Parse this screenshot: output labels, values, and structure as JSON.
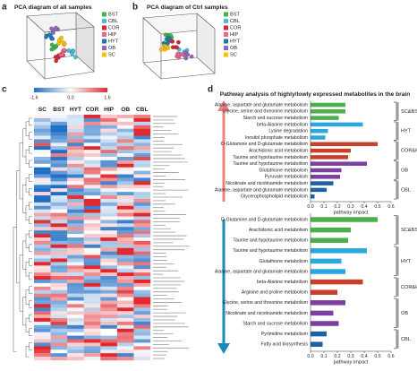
{
  "panel_a": {
    "label": "a",
    "title": "PCA diagram of all samples",
    "legend": [
      {
        "name": "BST",
        "color": "#3cb44b"
      },
      {
        "name": "CBL",
        "color": "#40c0e0"
      },
      {
        "name": "COR",
        "color": "#d62728"
      },
      {
        "name": "HIP",
        "color": "#f06292"
      },
      {
        "name": "HYT",
        "color": "#1f77b4"
      },
      {
        "name": "OB",
        "color": "#9467bd"
      },
      {
        "name": "SC",
        "color": "#ffbf00"
      }
    ]
  },
  "panel_b": {
    "label": "b",
    "title": "PCA diagram of Ctrl samples",
    "legend": [
      {
        "name": "BST",
        "color": "#3cb44b"
      },
      {
        "name": "CBL",
        "color": "#40c0e0"
      },
      {
        "name": "COR",
        "color": "#d62728"
      },
      {
        "name": "HIP",
        "color": "#f06292"
      },
      {
        "name": "HYT",
        "color": "#1f77b4"
      },
      {
        "name": "OB",
        "color": "#9467bd"
      },
      {
        "name": "SC",
        "color": "#ffbf00"
      }
    ]
  },
  "panel_c": {
    "label": "c",
    "colorbar_ticks": [
      -1.6,
      {
        "value": 0,
        "label": "0.0"
      },
      1.6
    ],
    "columns": [
      "SC",
      "BST",
      "HYT",
      "COR",
      "HIP",
      "OB",
      "CBL"
    ]
  },
  "panel_d": {
    "label": "d",
    "title": "Pathway analysis of highly/lowly expressed metabolites in the brain"
  },
  "chart_data": [
    {
      "type": "bar",
      "xlabel": "pathway impact",
      "xlim": [
        0,
        0.6
      ],
      "xticks": [
        {
          "value": 0,
          "label": "0.0"
        },
        0.1,
        0.2,
        0.3,
        0.4,
        0.5,
        0.6
      ],
      "groups": [
        {
          "name": "SC&BST",
          "color": "#4cae4c",
          "categories": [
            "Alanine, aspartate and glutamate metabolism",
            "Glycine, serine and threonine metabolism",
            "Starch and sucrose metabolism"
          ],
          "values": [
            0.26,
            0.26,
            0.21
          ]
        },
        {
          "name": "HYT",
          "color": "#29a8e0",
          "categories": [
            "beta-Alanine metabolism",
            "Lysine degradation",
            "Inositol phosphate metabolism"
          ],
          "values": [
            0.39,
            0.13,
            0.11
          ]
        },
        {
          "name": "COR&HIP",
          "color": "#c8402c",
          "categories": [
            "D-Glutamine and D-glutamate metabolism",
            "Arachidonic acid metabolism",
            "Taurine and hypotaurine metabolism"
          ],
          "values": [
            0.5,
            0.3,
            0.28
          ]
        },
        {
          "name": "OB",
          "color": "#7b3fa0",
          "categories": [
            "Taurine and hypotaurine metabolism",
            "Glutathione metabolism",
            "Pyruvate metabolism"
          ],
          "values": [
            0.42,
            0.23,
            0.22
          ]
        },
        {
          "name": "CBL",
          "color": "#1f5fa6",
          "categories": [
            "Nicotinate and nicotinamide metabolism",
            "Alanine, aspartate and glutamate metabolism",
            "Glycerophospholipid metabolism"
          ],
          "values": [
            0.17,
            0.12,
            0.03
          ]
        }
      ]
    },
    {
      "type": "bar",
      "xlabel": "pathway impact",
      "xlim": [
        0,
        0.6
      ],
      "xticks": [
        {
          "value": 0,
          "label": "0.0"
        },
        0.1,
        0.2,
        0.3,
        0.4,
        0.5,
        0.6
      ],
      "groups": [
        {
          "name": "SC&BST",
          "color": "#4cae4c",
          "categories": [
            "D-Glutamine and D-glutamate metabolism",
            "Arachidonic acid metabolism",
            "Taurine and hypotaurine metabolism"
          ],
          "values": [
            0.5,
            0.3,
            0.28
          ]
        },
        {
          "name": "HYT",
          "color": "#29a8e0",
          "categories": [
            "Taurine and hypotaurine metabolism",
            "Glutathione metabolism",
            "Alanine, aspartate and glutamate metabolism"
          ],
          "values": [
            0.42,
            0.23,
            0.26
          ]
        },
        {
          "name": "COR&HIP",
          "color": "#c8402c",
          "categories": [
            "beta-Alanine metabolism",
            "Arginine and proline metabolism"
          ],
          "values": [
            0.39,
            0.2
          ]
        },
        {
          "name": "OB",
          "color": "#7b3fa0",
          "categories": [
            "Glycine, serine and threonine metabolism",
            "Nicotinate and nicotinamide metabolism",
            "Starch and sucrose metabolism"
          ],
          "values": [
            0.26,
            0.17,
            0.21
          ]
        },
        {
          "name": "CBL",
          "color": "#1f5fa6",
          "categories": [
            "Pyrimidine metabolism",
            "Fatty acid biosynthesis"
          ],
          "values": [
            0.12,
            0.09
          ]
        }
      ]
    }
  ]
}
